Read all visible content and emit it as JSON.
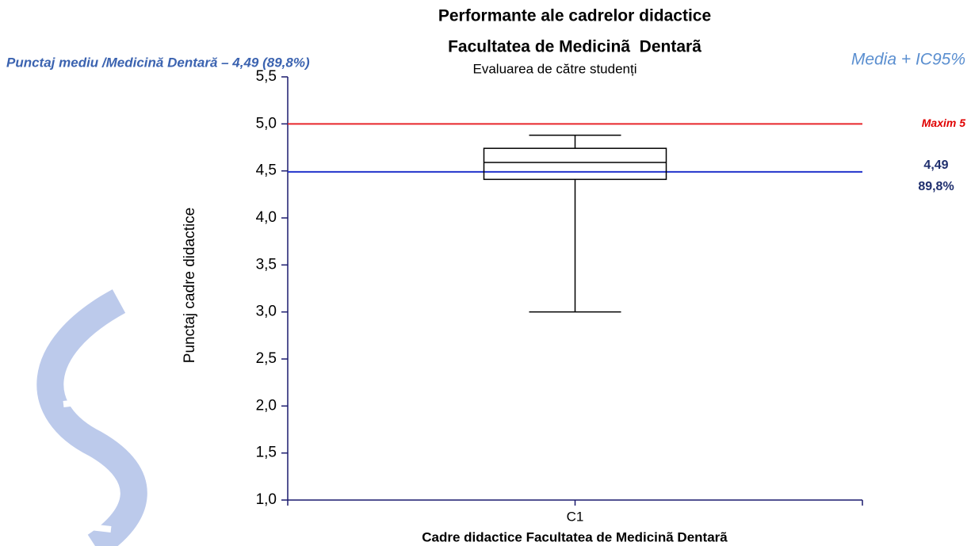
{
  "chart_data": {
    "type": "box",
    "title": "Performante ale cadrelor didactice",
    "title2": "Facultatea de Medicinã  Dentarã",
    "subtitle": "Evaluarea de către studenți",
    "note_left": "Punctaj mediu /Medicină Dentară – 4,49 (89,8%)",
    "note_right": "Media + IC95%",
    "y_label": "Punctaj cadre didactice",
    "x_label": "Cadre didactice Facultatea de Medicinã Dentarã",
    "categories": [
      "C1"
    ],
    "boxes": [
      {
        "low": 3.0,
        "q1": 4.41,
        "median": 4.59,
        "q3": 4.74,
        "high": 4.88
      }
    ],
    "ylim": [
      1.0,
      5.5
    ],
    "yticks": [
      {
        "value": 1.0,
        "label": "1,0"
      },
      {
        "value": 1.5,
        "label": "1,5"
      },
      {
        "value": 2.0,
        "label": "2,0"
      },
      {
        "value": 2.5,
        "label": "2,5"
      },
      {
        "value": 3.0,
        "label": "3,0"
      },
      {
        "value": 3.5,
        "label": "3,5"
      },
      {
        "value": 4.0,
        "label": "4,0"
      },
      {
        "value": 4.5,
        "label": "4,5"
      },
      {
        "value": 5.0,
        "label": "5,0"
      },
      {
        "value": 5.5,
        "label": "5,5"
      }
    ],
    "reference_lines": [
      {
        "value": 5,
        "color": "#e8262b",
        "labels": [
          "Maxim 5"
        ],
        "label_color": "#e00000"
      },
      {
        "value": 4.49,
        "color": "#2233cc",
        "labels": [
          "4,49",
          "89,8%"
        ],
        "label_color": "#1f2f6e"
      }
    ]
  }
}
